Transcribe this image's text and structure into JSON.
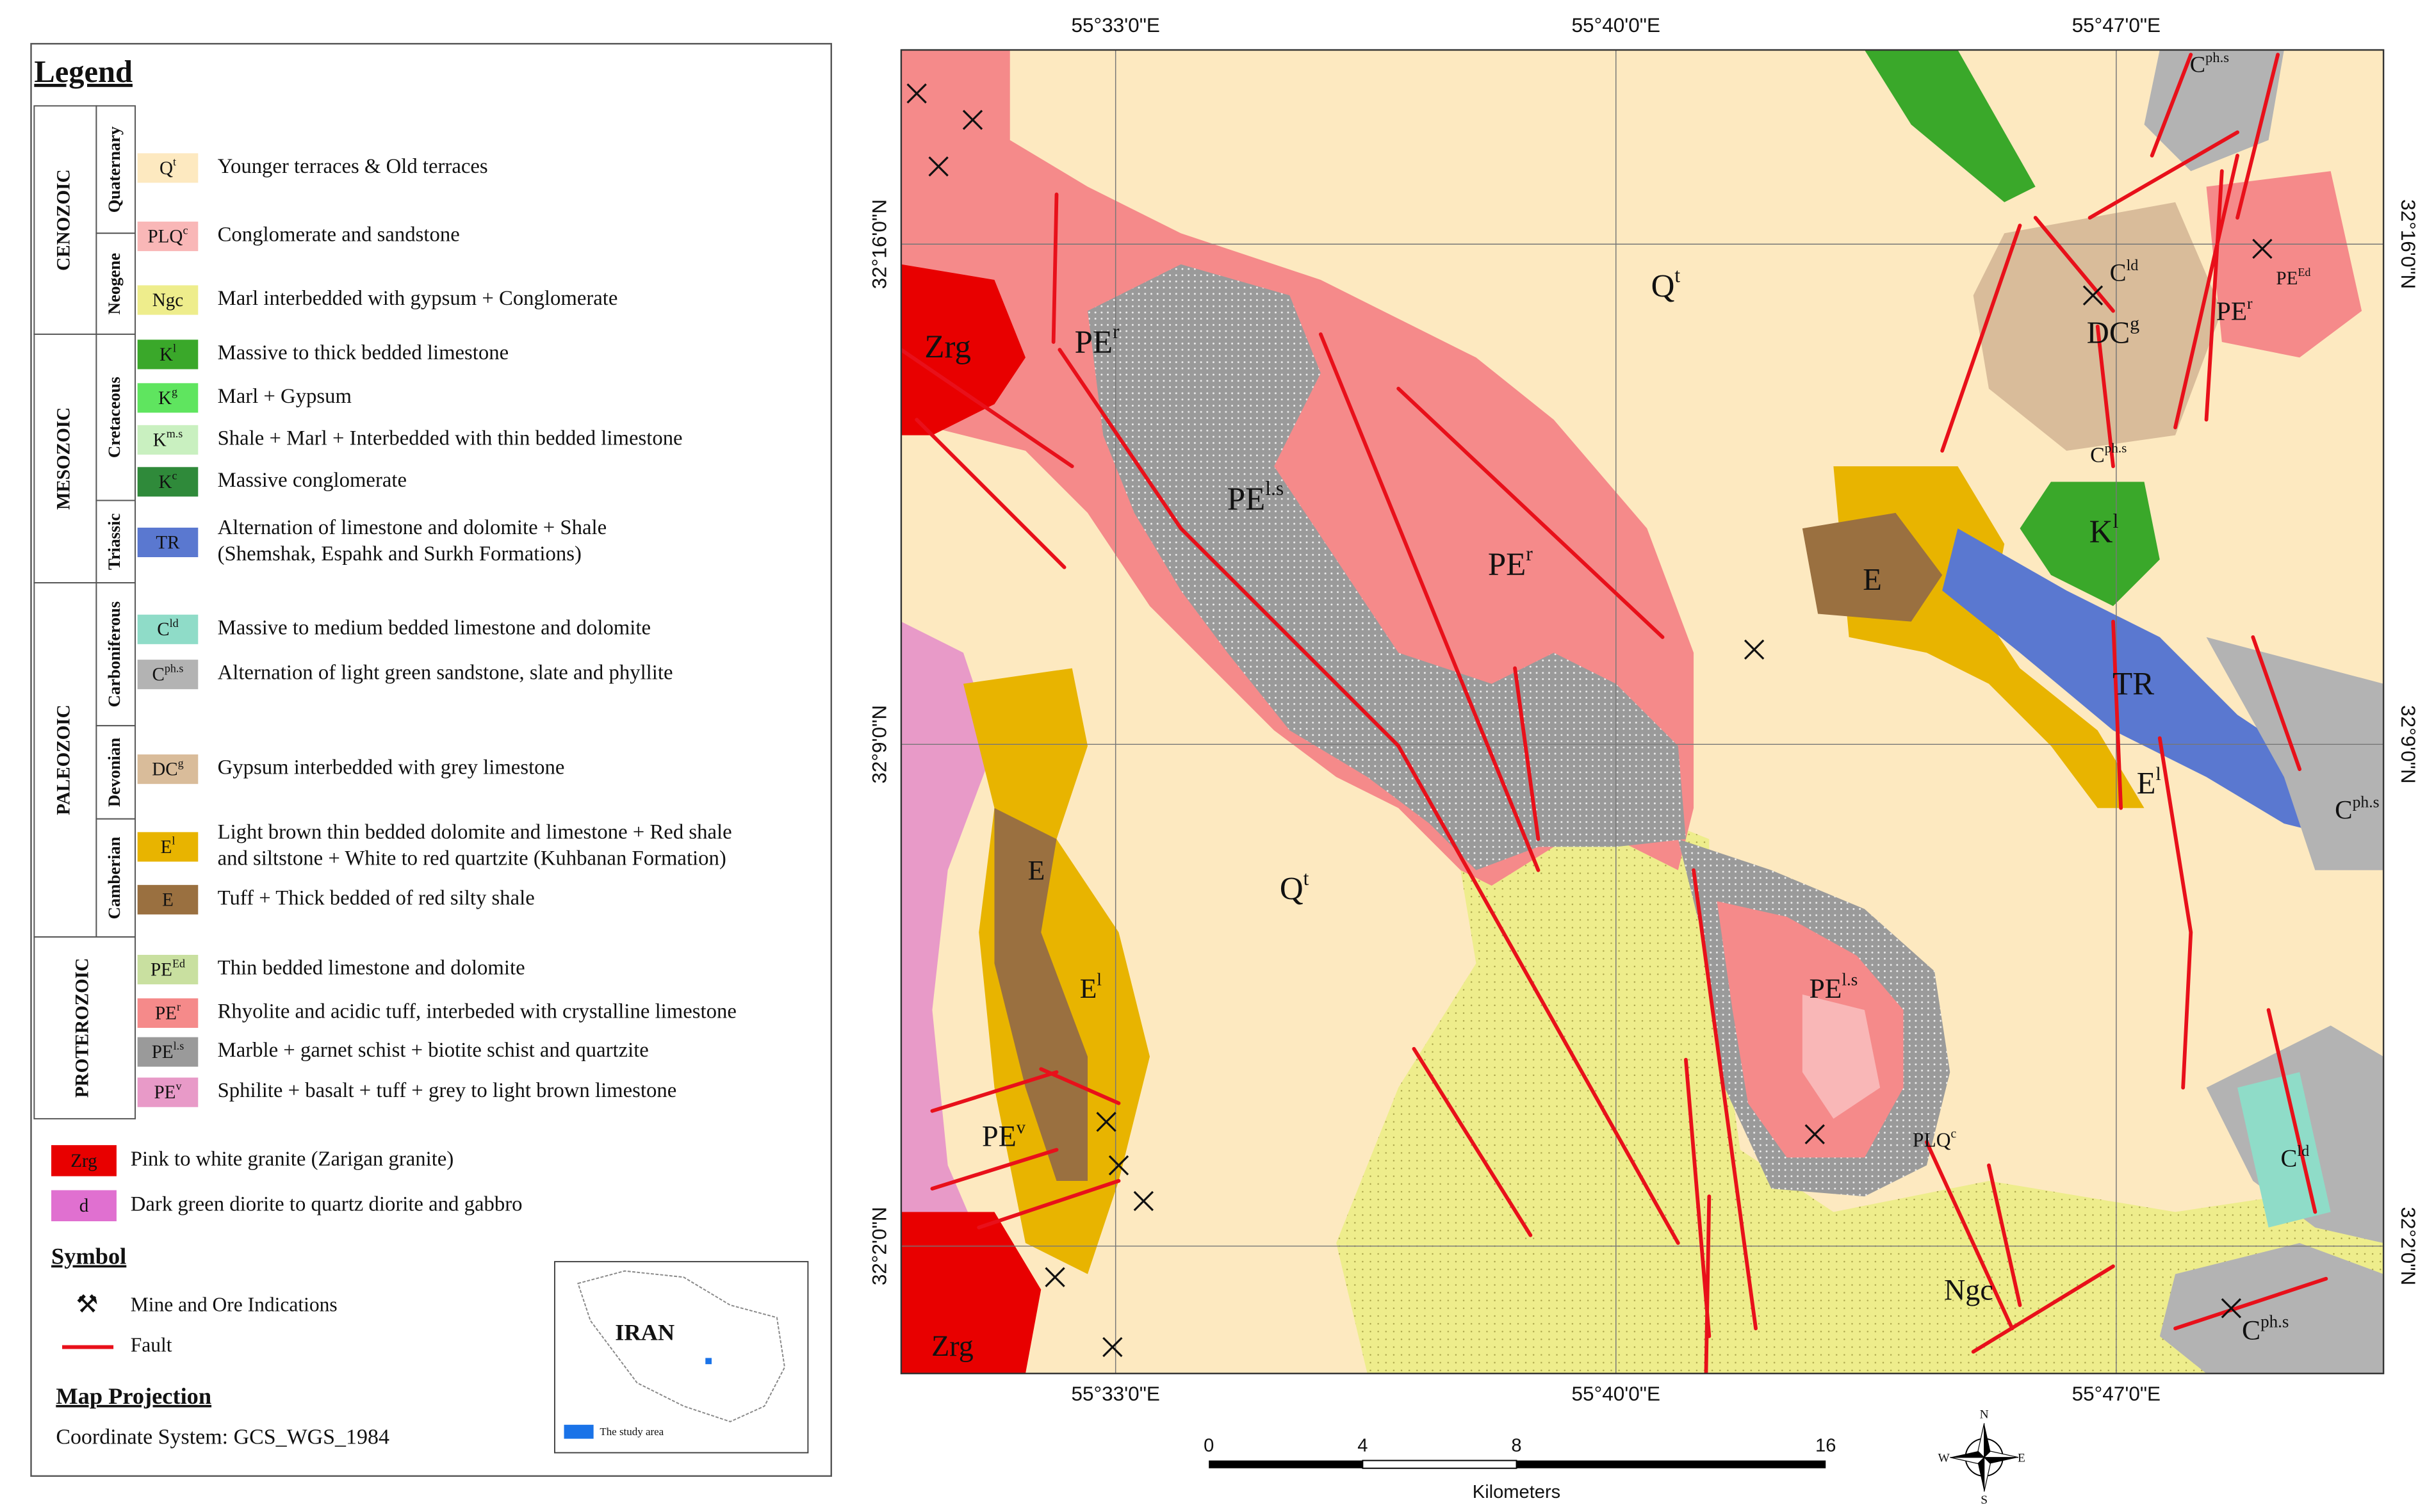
{
  "legend": {
    "title": "Legend",
    "eras": [
      {
        "name": "CENOZOIC",
        "periods": [
          {
            "name": "Quaternary",
            "units": [
              {
                "symbol": {
                  "base": "Q",
                  "sup": "t"
                },
                "color": "#fde9c0",
                "description": [
                  "Younger terraces & Old terraces"
                ]
              }
            ]
          },
          {
            "name": "Neogene",
            "units": [
              {
                "symbol": {
                  "base": "PLQ",
                  "sup": "c"
                },
                "color": "#f9b7b7",
                "description": [
                  "Conglomerate and sandstone"
                ]
              },
              {
                "symbol": {
                  "base": "Ngc"
                },
                "color": "#eeed8c",
                "description": [
                  "Marl interbedded with gypsum + Conglomerate"
                ]
              }
            ]
          }
        ]
      },
      {
        "name": "MESOZOIC",
        "periods": [
          {
            "name": "Cretaceous",
            "units": [
              {
                "symbol": {
                  "base": "K",
                  "sup": "l"
                },
                "color": "#3aa82a",
                "description": [
                  "Massive to thick bedded limestone"
                ]
              },
              {
                "symbol": {
                  "base": "K",
                  "sup": "g"
                },
                "color": "#5fe55f",
                "description": [
                  "Marl + Gypsum"
                ]
              },
              {
                "symbol": {
                  "base": "K",
                  "sup": "m.s"
                },
                "color": "#c9f0c0",
                "description": [
                  "Shale + Marl + Interbedded with thin bedded limestone"
                ]
              },
              {
                "symbol": {
                  "base": "K",
                  "sup": "c"
                },
                "color": "#2f8a3a",
                "description": [
                  "Massive conglomerate"
                ]
              }
            ]
          },
          {
            "name": "Triassic",
            "units": [
              {
                "symbol": {
                  "base": "TR"
                },
                "color": "#5a78d0",
                "description": [
                  "Alternation of limestone and dolomite + Shale",
                  "(Shemshak, Espahk and Surkh Formations)"
                ]
              }
            ]
          }
        ]
      },
      {
        "name": "PALEOZOIC",
        "periods": [
          {
            "name": "Carboniferous",
            "units": [
              {
                "symbol": {
                  "base": "C",
                  "sup": "ld"
                },
                "color": "#8fdcc8",
                "description": [
                  "Massive to medium bedded limestone and dolomite"
                ]
              },
              {
                "symbol": {
                  "base": "C",
                  "sup": "ph.s"
                },
                "color": "#b3b3b3",
                "description": [
                  "Alternation of light green sandstone, slate and phyllite"
                ]
              }
            ]
          },
          {
            "name": "Devonian",
            "units": [
              {
                "symbol": {
                  "base": "DC",
                  "sup": "g"
                },
                "color": "#d9bc9a",
                "description": [
                  "Gypsum interbedded with grey limestone"
                ]
              }
            ]
          },
          {
            "name": "Camberian",
            "units": [
              {
                "symbol": {
                  "base": "E",
                  "sup": "l"
                },
                "color": "#e8b400",
                "description": [
                  "Light brown thin bedded dolomite and limestone + Red shale",
                  "and siltstone + White to red quartzite (Kuhbanan Formation)"
                ]
              },
              {
                "symbol": {
                  "base": "E"
                },
                "color": "#9a7040",
                "description": [
                  "Tuff + Thick bedded of red silty shale"
                ]
              }
            ]
          }
        ]
      },
      {
        "name": "PROTEROZOIC",
        "units": [
          {
            "symbol": {
              "base": "PE",
              "sup": "Ed"
            },
            "color": "#c9e0a0",
            "description": [
              "Thin bedded limestone and dolomite"
            ]
          },
          {
            "symbol": {
              "base": "PE",
              "sup": "r"
            },
            "color": "#f58a8a",
            "description": [
              "Rhyolite and acidic tuff, interbeded with crystalline limestone"
            ]
          },
          {
            "symbol": {
              "base": "PE",
              "sup": "l.s"
            },
            "color": "#9a9a9a",
            "description": [
              "Marble + garnet schist + biotite schist and quartzite"
            ]
          },
          {
            "symbol": {
              "base": "PE",
              "sup": "v"
            },
            "color": "#e89ac8",
            "description": [
              "Sphilite + basalt + tuff + grey to light brown limestone"
            ]
          }
        ]
      }
    ],
    "intrusives": [
      {
        "symbol": {
          "base": "Zrg"
        },
        "color": "#e80000",
        "description": [
          "Pink to white granite (Zarigan granite)"
        ]
      },
      {
        "symbol": {
          "base": "d"
        },
        "color": "#e070d0",
        "description": [
          "Dark green diorite to quartz diorite and gabbro"
        ]
      }
    ],
    "symbol_title": "Symbol",
    "symbols": [
      "Mine and Ore Indications",
      "Fault"
    ],
    "projection_title": "Map Projection",
    "projection": "Coordinate System: GCS_WGS_1984"
  },
  "inset": {
    "title": "IRAN",
    "caption": "The study area"
  },
  "map": {
    "longitudes": [
      "55°33'0\"E",
      "55°40'0\"E",
      "55°47'0\"E"
    ],
    "latitudes": [
      "32°16'0\"N",
      "32°9'0\"N",
      "32°2'0\"N"
    ],
    "labels": [
      {
        "base": "Zrg"
      },
      {
        "base": "PE",
        "sup": "r"
      },
      {
        "base": "PE",
        "sup": "l.s"
      },
      {
        "base": "PE",
        "sup": "r"
      },
      {
        "base": "Q",
        "sup": "t"
      },
      {
        "base": "Q",
        "sup": "t"
      },
      {
        "base": "E"
      },
      {
        "base": "E",
        "sup": "l"
      },
      {
        "base": "PE",
        "sup": "v"
      },
      {
        "base": "Zrg"
      },
      {
        "base": "PE",
        "sup": "l.s"
      },
      {
        "base": "PLQ",
        "sup": "c"
      },
      {
        "base": "Ngc"
      },
      {
        "base": "DC",
        "sup": "g"
      },
      {
        "base": "C",
        "sup": "ld"
      },
      {
        "base": "PE",
        "sup": "r"
      },
      {
        "base": "PE",
        "sup": "Ed"
      },
      {
        "base": "C",
        "sup": "ph.s"
      },
      {
        "base": "C",
        "sup": "ph.s"
      },
      {
        "base": "K",
        "sup": "l"
      },
      {
        "base": "E"
      },
      {
        "base": "TR"
      },
      {
        "base": "E",
        "sup": "l"
      },
      {
        "base": "C",
        "sup": "ph.s"
      },
      {
        "base": "C",
        "sup": "ld"
      },
      {
        "base": "C",
        "sup": "ph.s"
      }
    ]
  },
  "scale_bar": {
    "ticks": [
      0,
      4,
      8,
      16
    ],
    "unit": "Kilometers"
  },
  "north_arrow": {
    "n": "N",
    "e": "E",
    "s": "S",
    "w": "W"
  }
}
